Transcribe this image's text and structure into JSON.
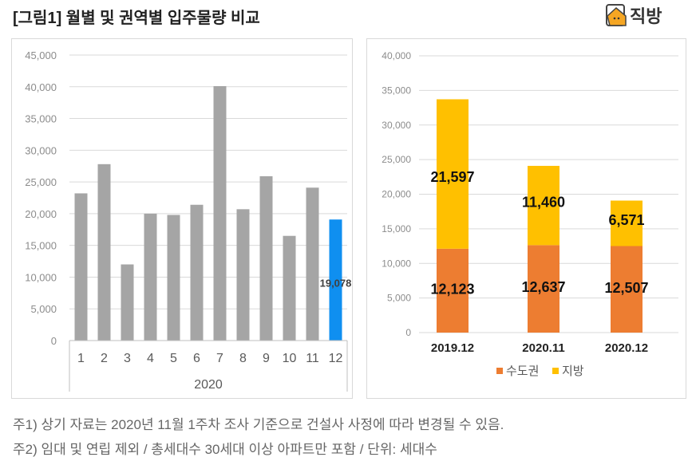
{
  "title": "[그림1] 월별 및 권역별 입주물량 비교",
  "logo": {
    "text": "직방",
    "icon": "house-logo-icon"
  },
  "chart_data": [
    {
      "type": "bar",
      "categories": [
        "1",
        "2",
        "3",
        "4",
        "5",
        "6",
        "7",
        "8",
        "9",
        "10",
        "11",
        "12"
      ],
      "group_label": "2020",
      "values": [
        23200,
        27800,
        12000,
        20000,
        19800,
        21400,
        40100,
        20700,
        25900,
        16500,
        24100,
        19078
      ],
      "highlight_index": 11,
      "highlight_label": "19,078",
      "ylim": [
        0,
        45000
      ],
      "yticks": [
        "0",
        "5,000",
        "10,000",
        "15,000",
        "20,000",
        "25,000",
        "30,000",
        "35,000",
        "40,000",
        "45,000"
      ],
      "grid": true,
      "colors": {
        "bar": "#a5a5a5",
        "highlight": "#0f8ff0"
      }
    },
    {
      "type": "bar",
      "stacked": true,
      "categories": [
        "2019.12",
        "2020.11",
        "2020.12"
      ],
      "series": [
        {
          "name": "수도권",
          "values": [
            12123,
            12637,
            12507
          ],
          "labels": [
            "12,123",
            "12,637",
            "12,507"
          ],
          "color": "#ed7d31"
        },
        {
          "name": "지방",
          "values": [
            21597,
            11460,
            6571
          ],
          "labels": [
            "21,597",
            "11,460",
            "6,571"
          ],
          "color": "#ffc000"
        }
      ],
      "ylim": [
        0,
        40000
      ],
      "yticks": [
        "0",
        "5,000",
        "10,000",
        "15,000",
        "20,000",
        "25,000",
        "30,000",
        "35,000",
        "40,000"
      ],
      "grid": true,
      "legend": "bottom"
    }
  ],
  "notes": [
    "주1) 상기 자료는 2020년 11월 1주차 조사 기준으로 건설사 사정에 따라 변경될 수 있음.",
    "주2) 임대 및 연립 제외 / 총세대수 30세대 이상 아파트만 포함 / 단위: 세대수"
  ]
}
